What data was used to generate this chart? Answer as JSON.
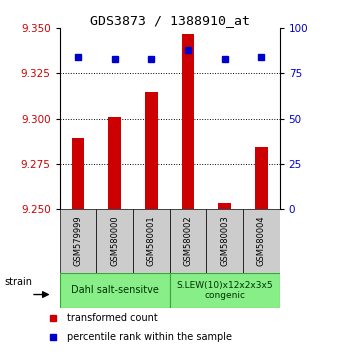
{
  "title": "GDS3873 / 1388910_at",
  "samples": [
    "GSM579999",
    "GSM580000",
    "GSM580001",
    "GSM580002",
    "GSM580003",
    "GSM580004"
  ],
  "red_values": [
    9.289,
    9.301,
    9.315,
    9.347,
    9.253,
    9.284
  ],
  "blue_values": [
    84,
    83,
    83,
    88,
    83,
    84
  ],
  "ylim_left": [
    9.25,
    9.35
  ],
  "ylim_right": [
    0,
    100
  ],
  "yticks_left": [
    9.25,
    9.275,
    9.3,
    9.325,
    9.35
  ],
  "yticks_right": [
    0,
    25,
    50,
    75,
    100
  ],
  "red_color": "#cc0000",
  "blue_color": "#0000cc",
  "bar_base": 9.25,
  "group1_label": "Dahl salt-sensitve",
  "group2_label": "S.LEW(10)x12x2x3x5\ncongenic",
  "group1_indices": [
    0,
    1,
    2
  ],
  "group2_indices": [
    3,
    4,
    5
  ],
  "group_color": "#88ee88",
  "strain_label": "strain",
  "legend_red": "transformed count",
  "legend_blue": "percentile rank within the sample",
  "tick_label_color_left": "#cc0000",
  "tick_label_color_right": "#0000cc",
  "sample_box_color": "#cccccc",
  "fig_width": 3.41,
  "fig_height": 3.54,
  "dpi": 100
}
